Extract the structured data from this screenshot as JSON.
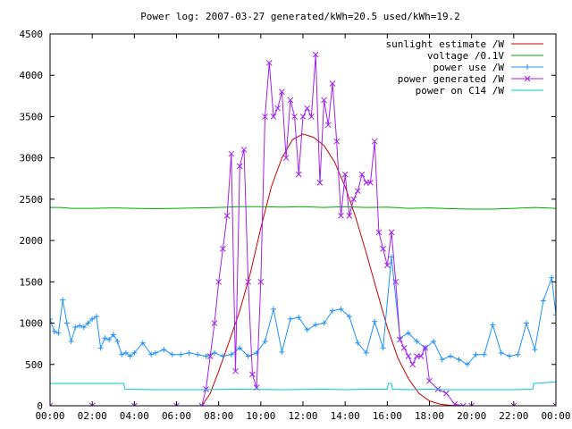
{
  "chart_data": {
    "type": "line",
    "title": "Power log: 2007-03-27 generated/kWh=20.5 used/kWh=19.2",
    "xlabel": "",
    "ylabel": "",
    "xlim": [
      0,
      24
    ],
    "ylim": [
      0,
      4500
    ],
    "x_ticks": [
      "00:00",
      "02:00",
      "04:00",
      "06:00",
      "08:00",
      "10:00",
      "12:00",
      "14:00",
      "16:00",
      "18:00",
      "20:00",
      "22:00",
      "00:00"
    ],
    "y_ticks": [
      0,
      500,
      1000,
      1500,
      2000,
      2500,
      3000,
      3500,
      4000,
      4500
    ],
    "grid": false,
    "legend_position": "top-right",
    "series": [
      {
        "name": "sunlight estimate /W",
        "color": "#cc0000",
        "marker": "none",
        "x": [
          7.2,
          7.6,
          8.0,
          8.5,
          9.0,
          9.5,
          10.0,
          10.5,
          11.0,
          11.5,
          12.0,
          12.5,
          13.0,
          13.5,
          14.0,
          14.5,
          15.0,
          15.5,
          16.0,
          16.5,
          17.0,
          17.5,
          18.0,
          18.5,
          19.0,
          19.5
        ],
        "values": [
          0,
          150,
          420,
          780,
          1150,
          1600,
          2150,
          2650,
          3000,
          3220,
          3290,
          3250,
          3150,
          2950,
          2650,
          2280,
          1850,
          1400,
          950,
          580,
          330,
          150,
          60,
          20,
          5,
          0
        ]
      },
      {
        "name": "voltage /0.1V",
        "color": "#00aa00",
        "marker": "none",
        "x": [
          0,
          0.5,
          1,
          2,
          3,
          4,
          5,
          6,
          7,
          8,
          9,
          10,
          11,
          12,
          13,
          14,
          15,
          16,
          17,
          18,
          19,
          20,
          21,
          22,
          23,
          24
        ],
        "values": [
          2400,
          2400,
          2390,
          2390,
          2395,
          2390,
          2385,
          2390,
          2395,
          2400,
          2410,
          2410,
          2405,
          2410,
          2400,
          2410,
          2400,
          2405,
          2390,
          2395,
          2385,
          2380,
          2380,
          2390,
          2400,
          2390
        ]
      },
      {
        "name": "power use /W",
        "color": "#1e90ff",
        "marker": "plus",
        "x": [
          0,
          0.2,
          0.4,
          0.6,
          0.8,
          1.0,
          1.2,
          1.4,
          1.6,
          1.8,
          2.0,
          2.2,
          2.4,
          2.6,
          2.8,
          3.0,
          3.2,
          3.4,
          3.6,
          3.8,
          4.0,
          4.4,
          4.8,
          5.0,
          5.4,
          5.8,
          6.2,
          6.6,
          7.0,
          7.4,
          7.8,
          8.2,
          8.6,
          9.0,
          9.4,
          9.8,
          10.2,
          10.6,
          11.0,
          11.4,
          11.8,
          12.2,
          12.6,
          13.0,
          13.4,
          13.8,
          14.2,
          14.6,
          15.0,
          15.4,
          15.8,
          16.2,
          16.6,
          17.0,
          17.4,
          17.8,
          18.2,
          18.6,
          19.0,
          19.4,
          19.8,
          20.2,
          20.6,
          21.0,
          21.4,
          21.8,
          22.2,
          22.6,
          23.0,
          23.4,
          23.8,
          24.0
        ],
        "values": [
          1050,
          900,
          880,
          1280,
          1000,
          780,
          950,
          970,
          950,
          1000,
          1050,
          1080,
          700,
          820,
          800,
          860,
          780,
          620,
          640,
          600,
          640,
          760,
          620,
          640,
          680,
          620,
          620,
          640,
          620,
          600,
          640,
          600,
          620,
          700,
          600,
          640,
          780,
          1170,
          650,
          1050,
          1070,
          920,
          980,
          1000,
          1150,
          1170,
          1080,
          760,
          640,
          1020,
          700,
          1800,
          820,
          880,
          780,
          700,
          780,
          560,
          600,
          560,
          500,
          620,
          620,
          980,
          640,
          600,
          620,
          1000,
          680,
          1270,
          1550,
          1100
        ]
      },
      {
        "name": "power generated /W",
        "color": "#a020f0",
        "marker": "x",
        "x": [
          0,
          2,
          4,
          6,
          7.2,
          7.4,
          7.6,
          7.8,
          8.0,
          8.2,
          8.4,
          8.6,
          8.8,
          9.0,
          9.2,
          9.4,
          9.6,
          9.8,
          10.0,
          10.2,
          10.4,
          10.6,
          10.8,
          11.0,
          11.2,
          11.4,
          11.6,
          11.8,
          12.0,
          12.2,
          12.4,
          12.6,
          12.8,
          13.0,
          13.2,
          13.4,
          13.6,
          13.8,
          14.0,
          14.2,
          14.4,
          14.6,
          14.8,
          15.0,
          15.2,
          15.4,
          15.6,
          15.8,
          16.0,
          16.2,
          16.4,
          16.6,
          16.8,
          17.0,
          17.2,
          17.4,
          17.6,
          17.8,
          18.0,
          18.4,
          18.8,
          19.2,
          19.6,
          20.0,
          22.0,
          24.0
        ],
        "values": [
          0,
          0,
          0,
          0,
          0,
          200,
          600,
          1000,
          1500,
          1900,
          2300,
          3050,
          420,
          2900,
          3100,
          1500,
          380,
          220,
          1500,
          3500,
          4150,
          3500,
          3600,
          3800,
          3000,
          3700,
          3500,
          2800,
          3500,
          3600,
          3500,
          4250,
          2700,
          3700,
          3400,
          3900,
          3200,
          2300,
          2800,
          2300,
          2500,
          2600,
          2800,
          2700,
          2700,
          3200,
          2100,
          1900,
          1700,
          2100,
          1500,
          800,
          700,
          600,
          500,
          600,
          600,
          700,
          300,
          200,
          150,
          20,
          0,
          0,
          0,
          0
        ]
      },
      {
        "name": "power on C14 /W",
        "color": "#00cccc",
        "marker": "none",
        "x": [
          0,
          1,
          2,
          3,
          3.5,
          3.55,
          5,
          7,
          9,
          11,
          13,
          14,
          15,
          16.0,
          16.05,
          16.2,
          16.25,
          17,
          18,
          19,
          20,
          21,
          22,
          22.9,
          22.95,
          23.5,
          24
        ],
        "values": [
          270,
          270,
          270,
          270,
          270,
          200,
          195,
          195,
          200,
          195,
          200,
          195,
          200,
          200,
          270,
          270,
          200,
          195,
          200,
          195,
          195,
          195,
          195,
          200,
          270,
          280,
          290
        ]
      }
    ]
  }
}
